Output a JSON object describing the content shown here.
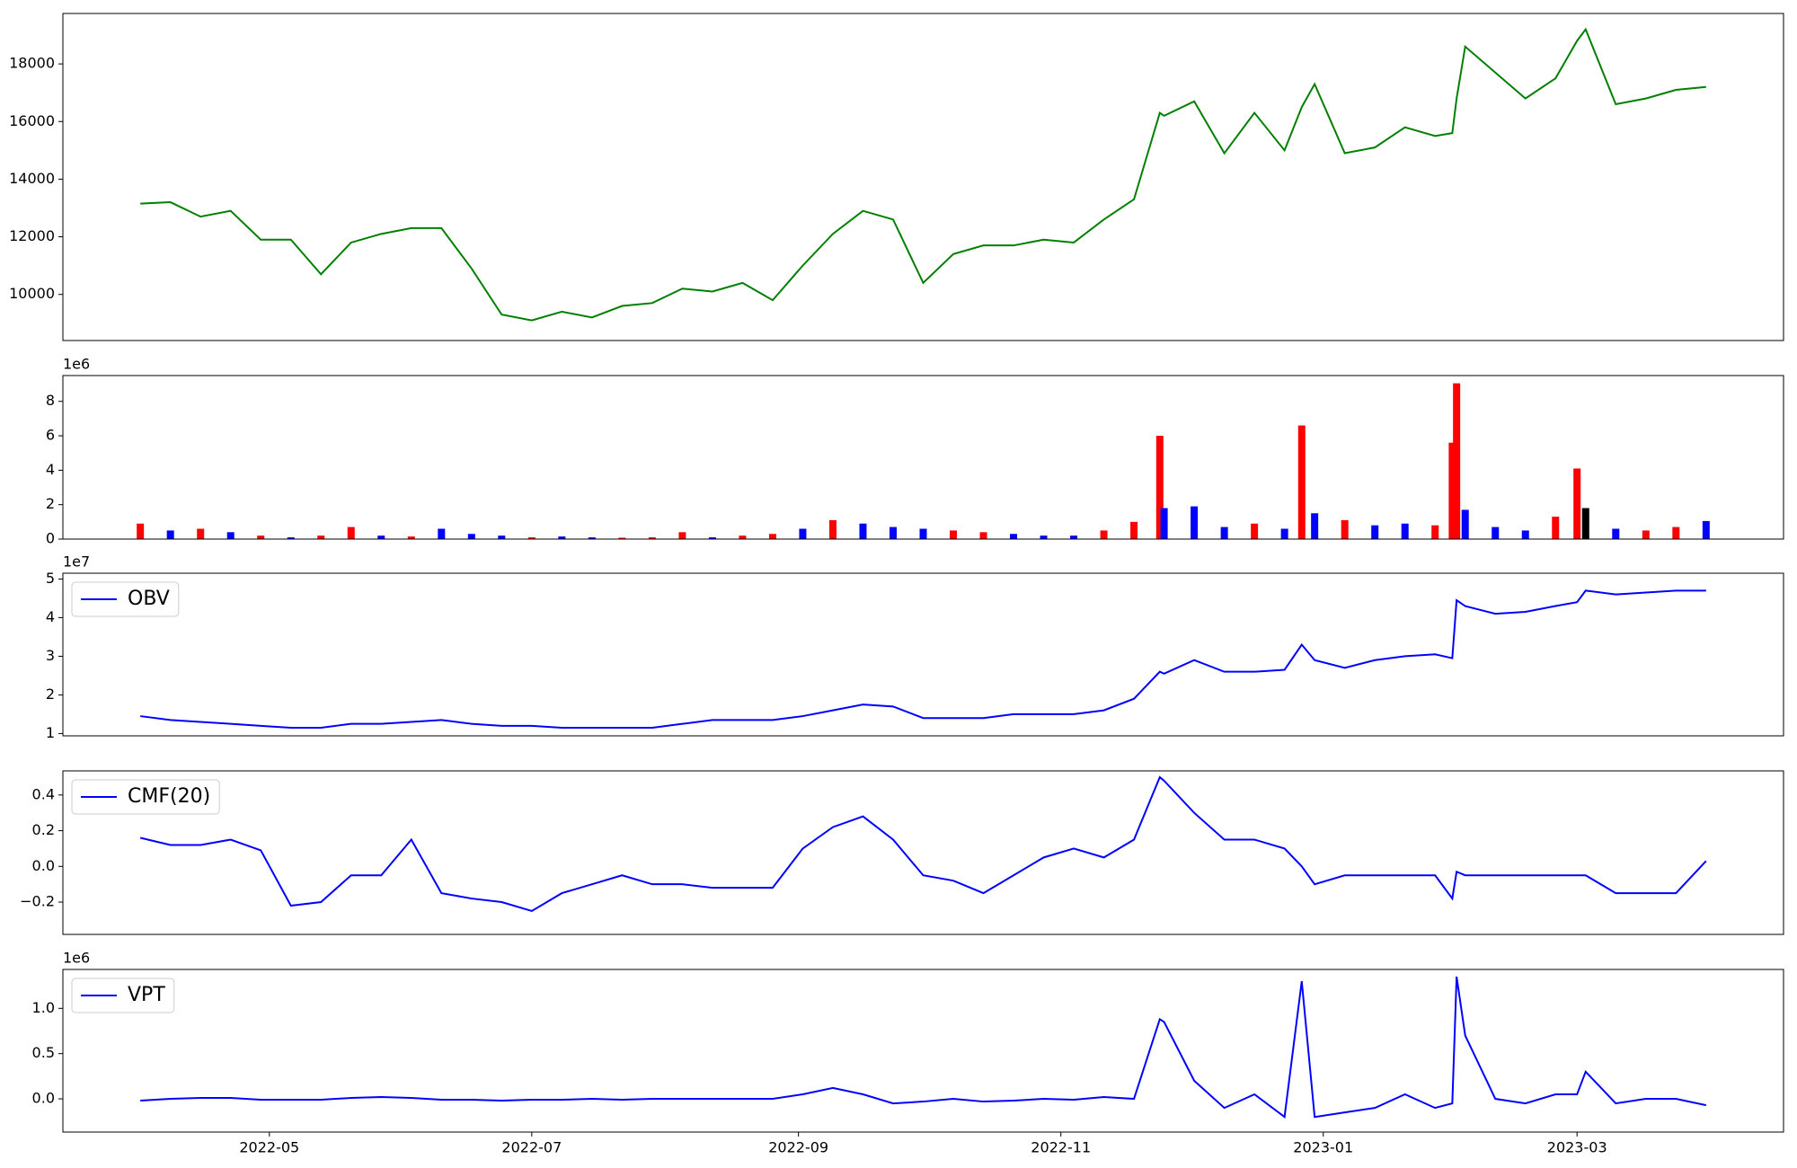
{
  "chart_data": [
    {
      "type": "line",
      "color": "#008000",
      "x": [
        "2022-04-01",
        "2022-04-08",
        "2022-04-15",
        "2022-04-22",
        "2022-04-29",
        "2022-05-06",
        "2022-05-13",
        "2022-05-20",
        "2022-05-27",
        "2022-06-03",
        "2022-06-10",
        "2022-06-17",
        "2022-06-24",
        "2022-07-01",
        "2022-07-08",
        "2022-07-15",
        "2022-07-22",
        "2022-07-29",
        "2022-08-05",
        "2022-08-12",
        "2022-08-19",
        "2022-08-26",
        "2022-09-02",
        "2022-09-09",
        "2022-09-16",
        "2022-09-23",
        "2022-09-30",
        "2022-10-07",
        "2022-10-14",
        "2022-10-21",
        "2022-10-28",
        "2022-11-04",
        "2022-11-11",
        "2022-11-18",
        "2022-11-24",
        "2022-11-25",
        "2022-12-02",
        "2022-12-09",
        "2022-12-16",
        "2022-12-23",
        "2022-12-27",
        "2022-12-30",
        "2023-01-06",
        "2023-01-13",
        "2023-01-20",
        "2023-01-27",
        "2023-01-31",
        "2023-02-01",
        "2023-02-03",
        "2023-02-10",
        "2023-02-17",
        "2023-02-24",
        "2023-03-01",
        "2023-03-03",
        "2023-03-10",
        "2023-03-17",
        "2023-03-24",
        "2023-03-31"
      ],
      "values": [
        13150,
        13200,
        12700,
        12900,
        11900,
        11900,
        10700,
        11800,
        12100,
        12300,
        12300,
        10900,
        9300,
        9100,
        9400,
        9200,
        9600,
        9700,
        10200,
        10100,
        10400,
        9800,
        11000,
        12100,
        12900,
        12600,
        10400,
        11400,
        11700,
        11700,
        11900,
        11800,
        12600,
        13300,
        16300,
        16200,
        16700,
        14900,
        16300,
        15000,
        16500,
        17300,
        14900,
        15100,
        15800,
        15500,
        15600,
        16800,
        18600,
        17700,
        16800,
        17500,
        18800,
        19200,
        16600,
        16800,
        17100,
        17200
      ],
      "xlim": [
        "2022-03-14",
        "2023-04-18"
      ],
      "ylim": [
        8400,
        19750
      ],
      "yticks": [
        10000,
        12000,
        14000,
        16000,
        18000
      ]
    },
    {
      "type": "bar",
      "x": [
        "2022-04-01",
        "2022-04-08",
        "2022-04-15",
        "2022-04-22",
        "2022-04-29",
        "2022-05-06",
        "2022-05-13",
        "2022-05-20",
        "2022-05-27",
        "2022-06-03",
        "2022-06-10",
        "2022-06-17",
        "2022-06-24",
        "2022-07-01",
        "2022-07-08",
        "2022-07-15",
        "2022-07-22",
        "2022-07-29",
        "2022-08-05",
        "2022-08-12",
        "2022-08-19",
        "2022-08-26",
        "2022-09-02",
        "2022-09-09",
        "2022-09-16",
        "2022-09-23",
        "2022-09-30",
        "2022-10-07",
        "2022-10-14",
        "2022-10-21",
        "2022-10-28",
        "2022-11-04",
        "2022-11-11",
        "2022-11-18",
        "2022-11-24",
        "2022-11-25",
        "2022-12-02",
        "2022-12-09",
        "2022-12-16",
        "2022-12-23",
        "2022-12-27",
        "2022-12-30",
        "2023-01-06",
        "2023-01-13",
        "2023-01-20",
        "2023-01-27",
        "2023-01-31",
        "2023-02-01",
        "2023-02-03",
        "2023-02-10",
        "2023-02-17",
        "2023-02-24",
        "2023-03-01",
        "2023-03-03",
        "2023-03-10",
        "2023-03-17",
        "2023-03-24",
        "2023-03-31"
      ],
      "values": [
        900000,
        500000,
        600000,
        400000,
        200000,
        100000,
        200000,
        700000,
        200000,
        150000,
        600000,
        300000,
        200000,
        100000,
        150000,
        100000,
        80000,
        100000,
        400000,
        100000,
        200000,
        300000,
        600000,
        1100000,
        900000,
        700000,
        600000,
        500000,
        400000,
        300000,
        200000,
        200000,
        500000,
        1000000,
        6000000,
        1800000,
        1900000,
        700000,
        900000,
        600000,
        6600000,
        1500000,
        1100000,
        800000,
        900000,
        800000,
        5600000,
        9050000,
        1700000,
        700000,
        500000,
        1300000,
        4100000,
        1800000,
        600000,
        500000,
        700000,
        1050000
      ],
      "colors": [
        "red",
        "blue",
        "red",
        "blue",
        "red",
        "blue",
        "red",
        "red",
        "blue",
        "red",
        "blue",
        "blue",
        "blue",
        "red",
        "blue",
        "blue",
        "red",
        "red",
        "red",
        "blue",
        "red",
        "red",
        "blue",
        "red",
        "blue",
        "blue",
        "blue",
        "red",
        "red",
        "blue",
        "blue",
        "blue",
        "red",
        "red",
        "red",
        "blue",
        "blue",
        "blue",
        "red",
        "blue",
        "red",
        "blue",
        "red",
        "blue",
        "blue",
        "red",
        "red",
        "red",
        "blue",
        "blue",
        "blue",
        "red",
        "red",
        "black",
        "blue",
        "red",
        "red",
        "blue"
      ],
      "xlim": [
        "2022-03-14",
        "2023-04-18"
      ],
      "ylim": [
        0,
        9500000
      ],
      "yticks": [
        0,
        {
          "value": 2000000,
          "label": "2"
        },
        {
          "value": 4000000,
          "label": "4"
        },
        {
          "value": 6000000,
          "label": "6"
        },
        {
          "value": 8000000,
          "label": "8"
        }
      ],
      "offset_label": "1e6"
    },
    {
      "type": "line",
      "legend": "upper left",
      "x": [
        "2022-04-01",
        "2022-04-08",
        "2022-04-15",
        "2022-04-22",
        "2022-04-29",
        "2022-05-06",
        "2022-05-13",
        "2022-05-20",
        "2022-05-27",
        "2022-06-03",
        "2022-06-10",
        "2022-06-17",
        "2022-06-24",
        "2022-07-01",
        "2022-07-08",
        "2022-07-15",
        "2022-07-22",
        "2022-07-29",
        "2022-08-05",
        "2022-08-12",
        "2022-08-19",
        "2022-08-26",
        "2022-09-02",
        "2022-09-09",
        "2022-09-16",
        "2022-09-23",
        "2022-09-30",
        "2022-10-07",
        "2022-10-14",
        "2022-10-21",
        "2022-10-28",
        "2022-11-04",
        "2022-11-11",
        "2022-11-18",
        "2022-11-24",
        "2022-11-25",
        "2022-12-02",
        "2022-12-09",
        "2022-12-16",
        "2022-12-23",
        "2022-12-27",
        "2022-12-30",
        "2023-01-06",
        "2023-01-13",
        "2023-01-20",
        "2023-01-27",
        "2023-01-31",
        "2023-02-01",
        "2023-02-03",
        "2023-02-10",
        "2023-02-17",
        "2023-02-24",
        "2023-03-01",
        "2023-03-03",
        "2023-03-10",
        "2023-03-17",
        "2023-03-24",
        "2023-03-31"
      ],
      "series": [
        {
          "name": "OBV",
          "color": "#0000ff",
          "values": [
            14500000,
            13500000,
            13000000,
            12500000,
            12000000,
            11500000,
            11500000,
            12500000,
            12500000,
            13000000,
            13500000,
            12500000,
            12000000,
            12000000,
            11500000,
            11500000,
            11500000,
            11500000,
            12500000,
            13500000,
            13500000,
            13500000,
            14500000,
            16000000,
            17500000,
            17000000,
            14000000,
            14000000,
            14000000,
            15000000,
            15000000,
            15000000,
            16000000,
            19000000,
            26000000,
            25500000,
            29000000,
            26000000,
            26000000,
            26500000,
            33000000,
            29000000,
            27000000,
            29000000,
            30000000,
            30500000,
            29500000,
            44500000,
            43000000,
            41000000,
            41500000,
            43000000,
            44000000,
            47000000,
            46000000,
            46500000,
            47000000,
            47000000
          ]
        }
      ],
      "xlim": [
        "2022-03-14",
        "2023-04-18"
      ],
      "ylim": [
        9400000,
        51500000
      ],
      "yticks": [
        {
          "value": 10000000,
          "label": "1"
        },
        {
          "value": 20000000,
          "label": "2"
        },
        {
          "value": 30000000,
          "label": "3"
        },
        {
          "value": 40000000,
          "label": "4"
        },
        {
          "value": 50000000,
          "label": "5"
        }
      ],
      "offset_label": "1e7"
    },
    {
      "type": "line",
      "legend": "upper left",
      "x": [
        "2022-04-01",
        "2022-04-08",
        "2022-04-15",
        "2022-04-22",
        "2022-04-29",
        "2022-05-06",
        "2022-05-13",
        "2022-05-20",
        "2022-05-27",
        "2022-06-03",
        "2022-06-10",
        "2022-06-17",
        "2022-06-24",
        "2022-07-01",
        "2022-07-08",
        "2022-07-15",
        "2022-07-22",
        "2022-07-29",
        "2022-08-05",
        "2022-08-12",
        "2022-08-19",
        "2022-08-26",
        "2022-09-02",
        "2022-09-09",
        "2022-09-16",
        "2022-09-23",
        "2022-09-30",
        "2022-10-07",
        "2022-10-14",
        "2022-10-21",
        "2022-10-28",
        "2022-11-04",
        "2022-11-11",
        "2022-11-18",
        "2022-11-24",
        "2022-11-25",
        "2022-12-02",
        "2022-12-09",
        "2022-12-16",
        "2022-12-23",
        "2022-12-27",
        "2022-12-30",
        "2023-01-06",
        "2023-01-13",
        "2023-01-20",
        "2023-01-27",
        "2023-01-31",
        "2023-02-01",
        "2023-02-03",
        "2023-02-10",
        "2023-02-17",
        "2023-02-24",
        "2023-03-01",
        "2023-03-03",
        "2023-03-10",
        "2023-03-17",
        "2023-03-24",
        "2023-03-31"
      ],
      "series": [
        {
          "name": "CMF(20)",
          "color": "#0000ff",
          "values": [
            0.16,
            0.12,
            0.12,
            0.15,
            0.09,
            -0.22,
            -0.2,
            -0.05,
            -0.05,
            0.15,
            -0.15,
            -0.18,
            -0.2,
            -0.25,
            -0.15,
            -0.1,
            -0.05,
            -0.1,
            -0.1,
            -0.12,
            -0.12,
            -0.12,
            0.1,
            0.22,
            0.28,
            0.15,
            -0.05,
            -0.08,
            -0.15,
            -0.05,
            0.05,
            0.1,
            0.05,
            0.15,
            0.5,
            0.48,
            0.3,
            0.15,
            0.15,
            0.1,
            0.0,
            -0.1,
            -0.05,
            -0.05,
            -0.05,
            -0.05,
            -0.18,
            -0.03,
            -0.05,
            -0.05,
            -0.05,
            -0.05,
            -0.05,
            -0.05,
            -0.15,
            -0.15,
            -0.15,
            0.03
          ]
        }
      ],
      "xlim": [
        "2022-03-14",
        "2023-04-18"
      ],
      "ylim": [
        -0.381,
        0.535
      ],
      "yticks": [
        {
          "value": -0.2,
          "label": "−0.2"
        },
        {
          "value": 0,
          "label": "0.0"
        },
        0.2,
        0.4
      ]
    },
    {
      "type": "line",
      "legend": "upper left",
      "x": [
        "2022-04-01",
        "2022-04-08",
        "2022-04-15",
        "2022-04-22",
        "2022-04-29",
        "2022-05-06",
        "2022-05-13",
        "2022-05-20",
        "2022-05-27",
        "2022-06-03",
        "2022-06-10",
        "2022-06-17",
        "2022-06-24",
        "2022-07-01",
        "2022-07-08",
        "2022-07-15",
        "2022-07-22",
        "2022-07-29",
        "2022-08-05",
        "2022-08-12",
        "2022-08-19",
        "2022-08-26",
        "2022-09-02",
        "2022-09-09",
        "2022-09-16",
        "2022-09-23",
        "2022-09-30",
        "2022-10-07",
        "2022-10-14",
        "2022-10-21",
        "2022-10-28",
        "2022-11-04",
        "2022-11-11",
        "2022-11-18",
        "2022-11-24",
        "2022-11-25",
        "2022-12-02",
        "2022-12-09",
        "2022-12-16",
        "2022-12-23",
        "2022-12-27",
        "2022-12-30",
        "2023-01-06",
        "2023-01-13",
        "2023-01-20",
        "2023-01-27",
        "2023-01-31",
        "2023-02-01",
        "2023-02-03",
        "2023-02-10",
        "2023-02-17",
        "2023-02-24",
        "2023-03-01",
        "2023-03-03",
        "2023-03-10",
        "2023-03-17",
        "2023-03-24",
        "2023-03-31"
      ],
      "series": [
        {
          "name": "VPT",
          "color": "#0000ff",
          "values": [
            -20000,
            0,
            10000,
            10000,
            -10000,
            -10000,
            -10000,
            10000,
            20000,
            10000,
            -10000,
            -10000,
            -20000,
            -10000,
            -10000,
            0,
            -10000,
            0,
            0,
            0,
            0,
            0,
            50000,
            120000,
            50000,
            -50000,
            -30000,
            0,
            -30000,
            -20000,
            0,
            -10000,
            20000,
            0,
            880000,
            850000,
            200000,
            -100000,
            50000,
            -200000,
            1300000,
            -200000,
            -150000,
            -100000,
            50000,
            -100000,
            -50000,
            1350000,
            700000,
            0,
            -50000,
            50000,
            50000,
            300000,
            -50000,
            0,
            0,
            -70000
          ]
        }
      ],
      "xlim": [
        "2022-03-14",
        "2023-04-18"
      ],
      "ylim": [
        -367000,
        1430000
      ],
      "yticks": [
        {
          "value": 0,
          "label": "0.0"
        },
        {
          "value": 500000,
          "label": "0.5"
        },
        {
          "value": 1000000,
          "label": "1.0"
        }
      ],
      "offset_label": "1e6",
      "xticks": [
        {
          "value": "2022-05-01",
          "label": "2022-05"
        },
        {
          "value": "2022-07-01",
          "label": "2022-07"
        },
        {
          "value": "2022-09-01",
          "label": "2022-09"
        },
        {
          "value": "2022-11-01",
          "label": "2022-11"
        },
        {
          "value": "2023-01-01",
          "label": "2023-01"
        },
        {
          "value": "2023-03-01",
          "label": "2023-03"
        }
      ]
    }
  ]
}
